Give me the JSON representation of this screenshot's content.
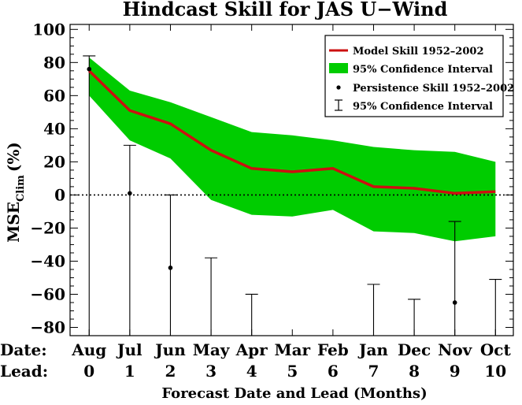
{
  "chart_data": {
    "type": "line",
    "title": "Hindcast Skill for JAS U−Wind",
    "ylabel_main": "MSE",
    "ylabel_sub": "Clim",
    "ylabel_unit": "(%)",
    "xlabel": "Forecast Date and Lead (Months)",
    "row_labels": {
      "date": "Date:",
      "lead": "Lead:"
    },
    "dates": [
      "Aug",
      "Jul",
      "Jun",
      "May",
      "Apr",
      "Mar",
      "Feb",
      "Jan",
      "Dec",
      "Nov",
      "Oct"
    ],
    "leads": [
      "0",
      "1",
      "2",
      "3",
      "4",
      "5",
      "6",
      "7",
      "8",
      "9",
      "10"
    ],
    "x": [
      0,
      1,
      2,
      3,
      4,
      5,
      6,
      7,
      8,
      9,
      10
    ],
    "ylim": [
      -85,
      103
    ],
    "yticks": [
      -80,
      -60,
      -40,
      -20,
      0,
      20,
      40,
      60,
      80,
      100
    ],
    "ytick_labels": [
      "−80",
      "−60",
      "−40",
      "−20",
      "0",
      "20",
      "40",
      "60",
      "80",
      "100"
    ],
    "zero_line": "dotted",
    "legend_position": "top-right",
    "model_skill": {
      "name": "Model Skill 1952–2002",
      "color": "#cc1010",
      "values": [
        75,
        51,
        43,
        27,
        16,
        14,
        16,
        5,
        4,
        1,
        2
      ]
    },
    "model_ci": {
      "name": "95% Confidence Interval",
      "color": "#00cc00",
      "upper": [
        83,
        63,
        56,
        47,
        38,
        36,
        33,
        29,
        27,
        26,
        20
      ],
      "lower": [
        60,
        33,
        22,
        -3,
        -12,
        -13,
        -9,
        -22,
        -23,
        -28,
        -25
      ]
    },
    "persistence": {
      "name": "Persistence Skill 1952–2002",
      "values": [
        76,
        1,
        -44,
        null,
        null,
        null,
        null,
        null,
        null,
        -65,
        null
      ]
    },
    "persistence_ci": {
      "name": "95% Confidence Interval",
      "upper": [
        84,
        30,
        0,
        -38,
        -60,
        null,
        null,
        -54,
        -63,
        -16,
        -51
      ]
    }
  }
}
